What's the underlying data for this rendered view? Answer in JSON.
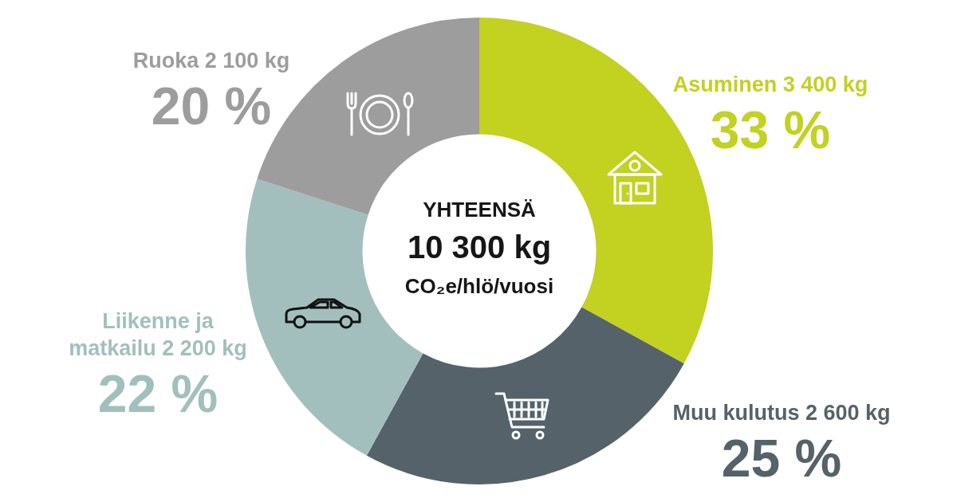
{
  "chart_data": {
    "type": "donut",
    "categories": [
      "Asuminen 3 400 kg",
      "Muu kulutus 2 600 kg",
      "Liikenne ja matkailu 2 200 kg",
      "Ruoka 2 100 kg"
    ],
    "values": [
      33,
      25,
      22,
      20
    ],
    "value_labels": [
      "33 %",
      "25 %",
      "22 %",
      "20 %"
    ],
    "colors": [
      "#c3d121",
      "#55626a",
      "#a2bfbd",
      "#9d9d9d"
    ],
    "annotations": [
      "YHTEENSÄ",
      "10 300 kg",
      "CO₂e/hlö/vuosi"
    ]
  }
}
